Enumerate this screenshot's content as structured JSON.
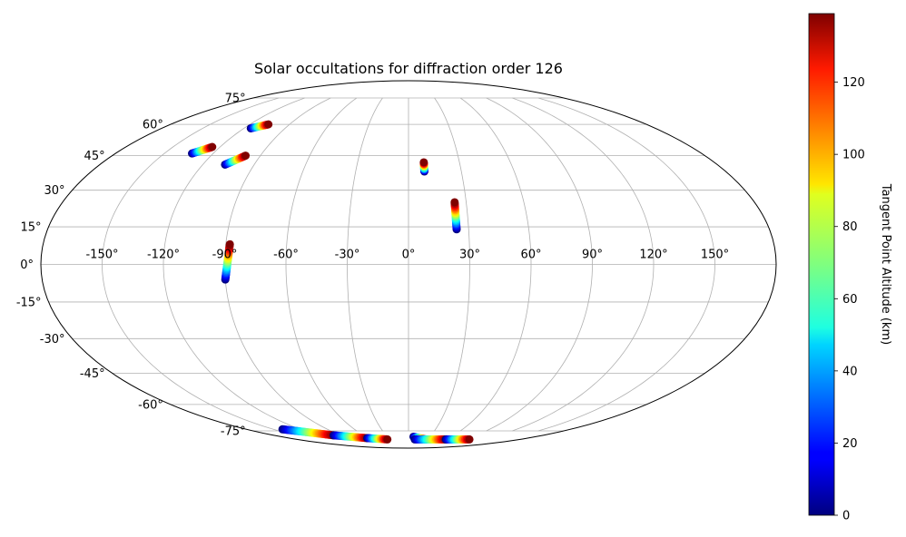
{
  "chart_data": {
    "type": "scatter",
    "projection": "mollweide",
    "title": "Solar occultations for diffraction order 126",
    "xlabel": "",
    "ylabel": "",
    "grid": true,
    "longitude_ticks": [
      {
        "value": -150,
        "label": "-150°"
      },
      {
        "value": -120,
        "label": "-120°"
      },
      {
        "value": -90,
        "label": "-90°"
      },
      {
        "value": -60,
        "label": "-60°"
      },
      {
        "value": -30,
        "label": "-30°"
      },
      {
        "value": 0,
        "label": "0°"
      },
      {
        "value": 30,
        "label": "30°"
      },
      {
        "value": 60,
        "label": "60°"
      },
      {
        "value": 90,
        "label": "90°"
      },
      {
        "value": 120,
        "label": "120°"
      },
      {
        "value": 150,
        "label": "150°"
      }
    ],
    "latitude_ticks": [
      {
        "value": 75,
        "label": "75°"
      },
      {
        "value": 60,
        "label": "60°"
      },
      {
        "value": 45,
        "label": "45°"
      },
      {
        "value": 30,
        "label": "30°"
      },
      {
        "value": 15,
        "label": "15°"
      },
      {
        "value": 0,
        "label": "0°"
      },
      {
        "value": -15,
        "label": "-15°"
      },
      {
        "value": -30,
        "label": "-30°"
      },
      {
        "value": -45,
        "label": "-45°"
      },
      {
        "value": -60,
        "label": "-60°"
      },
      {
        "value": -75,
        "label": "-75°"
      }
    ],
    "colorbar": {
      "label": "Tangent Point Altitude (km)",
      "colormap": "jet",
      "range": [
        0,
        139
      ],
      "ticks": [
        0,
        20,
        40,
        60,
        80,
        100,
        120
      ]
    },
    "tracks": [
      {
        "lon_start": -133,
        "lat_start": 46,
        "lon_end": -125,
        "lat_end": 49
      },
      {
        "lon_start": -115,
        "lat_start": 58,
        "lon_end": -106,
        "lat_end": 60
      },
      {
        "lon_start": -107,
        "lat_start": 41,
        "lon_end": -99,
        "lat_end": 45
      },
      {
        "lon_start": -90,
        "lat_start": -6,
        "lon_end": -88,
        "lat_end": 8
      },
      {
        "lon_start": 9,
        "lat_start": 38,
        "lon_end": 9,
        "lat_end": 42
      },
      {
        "lon_start": 24,
        "lat_start": 14,
        "lon_end": 24,
        "lat_end": 25
      },
      {
        "lon_start": -140,
        "lat_start": -74,
        "lon_end": -100,
        "lat_end": -78
      },
      {
        "lon_start": -100,
        "lat_start": -78,
        "lon_end": -62,
        "lat_end": -80
      },
      {
        "lon_start": -62,
        "lat_start": -80,
        "lon_end": -34,
        "lat_end": -81
      },
      {
        "lon_start": 7,
        "lat_start": -79,
        "lon_end": 28,
        "lat_end": -81
      },
      {
        "lon_start": 10,
        "lat_start": -81,
        "lon_end": 60,
        "lat_end": -81
      },
      {
        "lon_start": 60,
        "lat_start": -81,
        "lon_end": 98,
        "lat_end": -81
      }
    ]
  }
}
